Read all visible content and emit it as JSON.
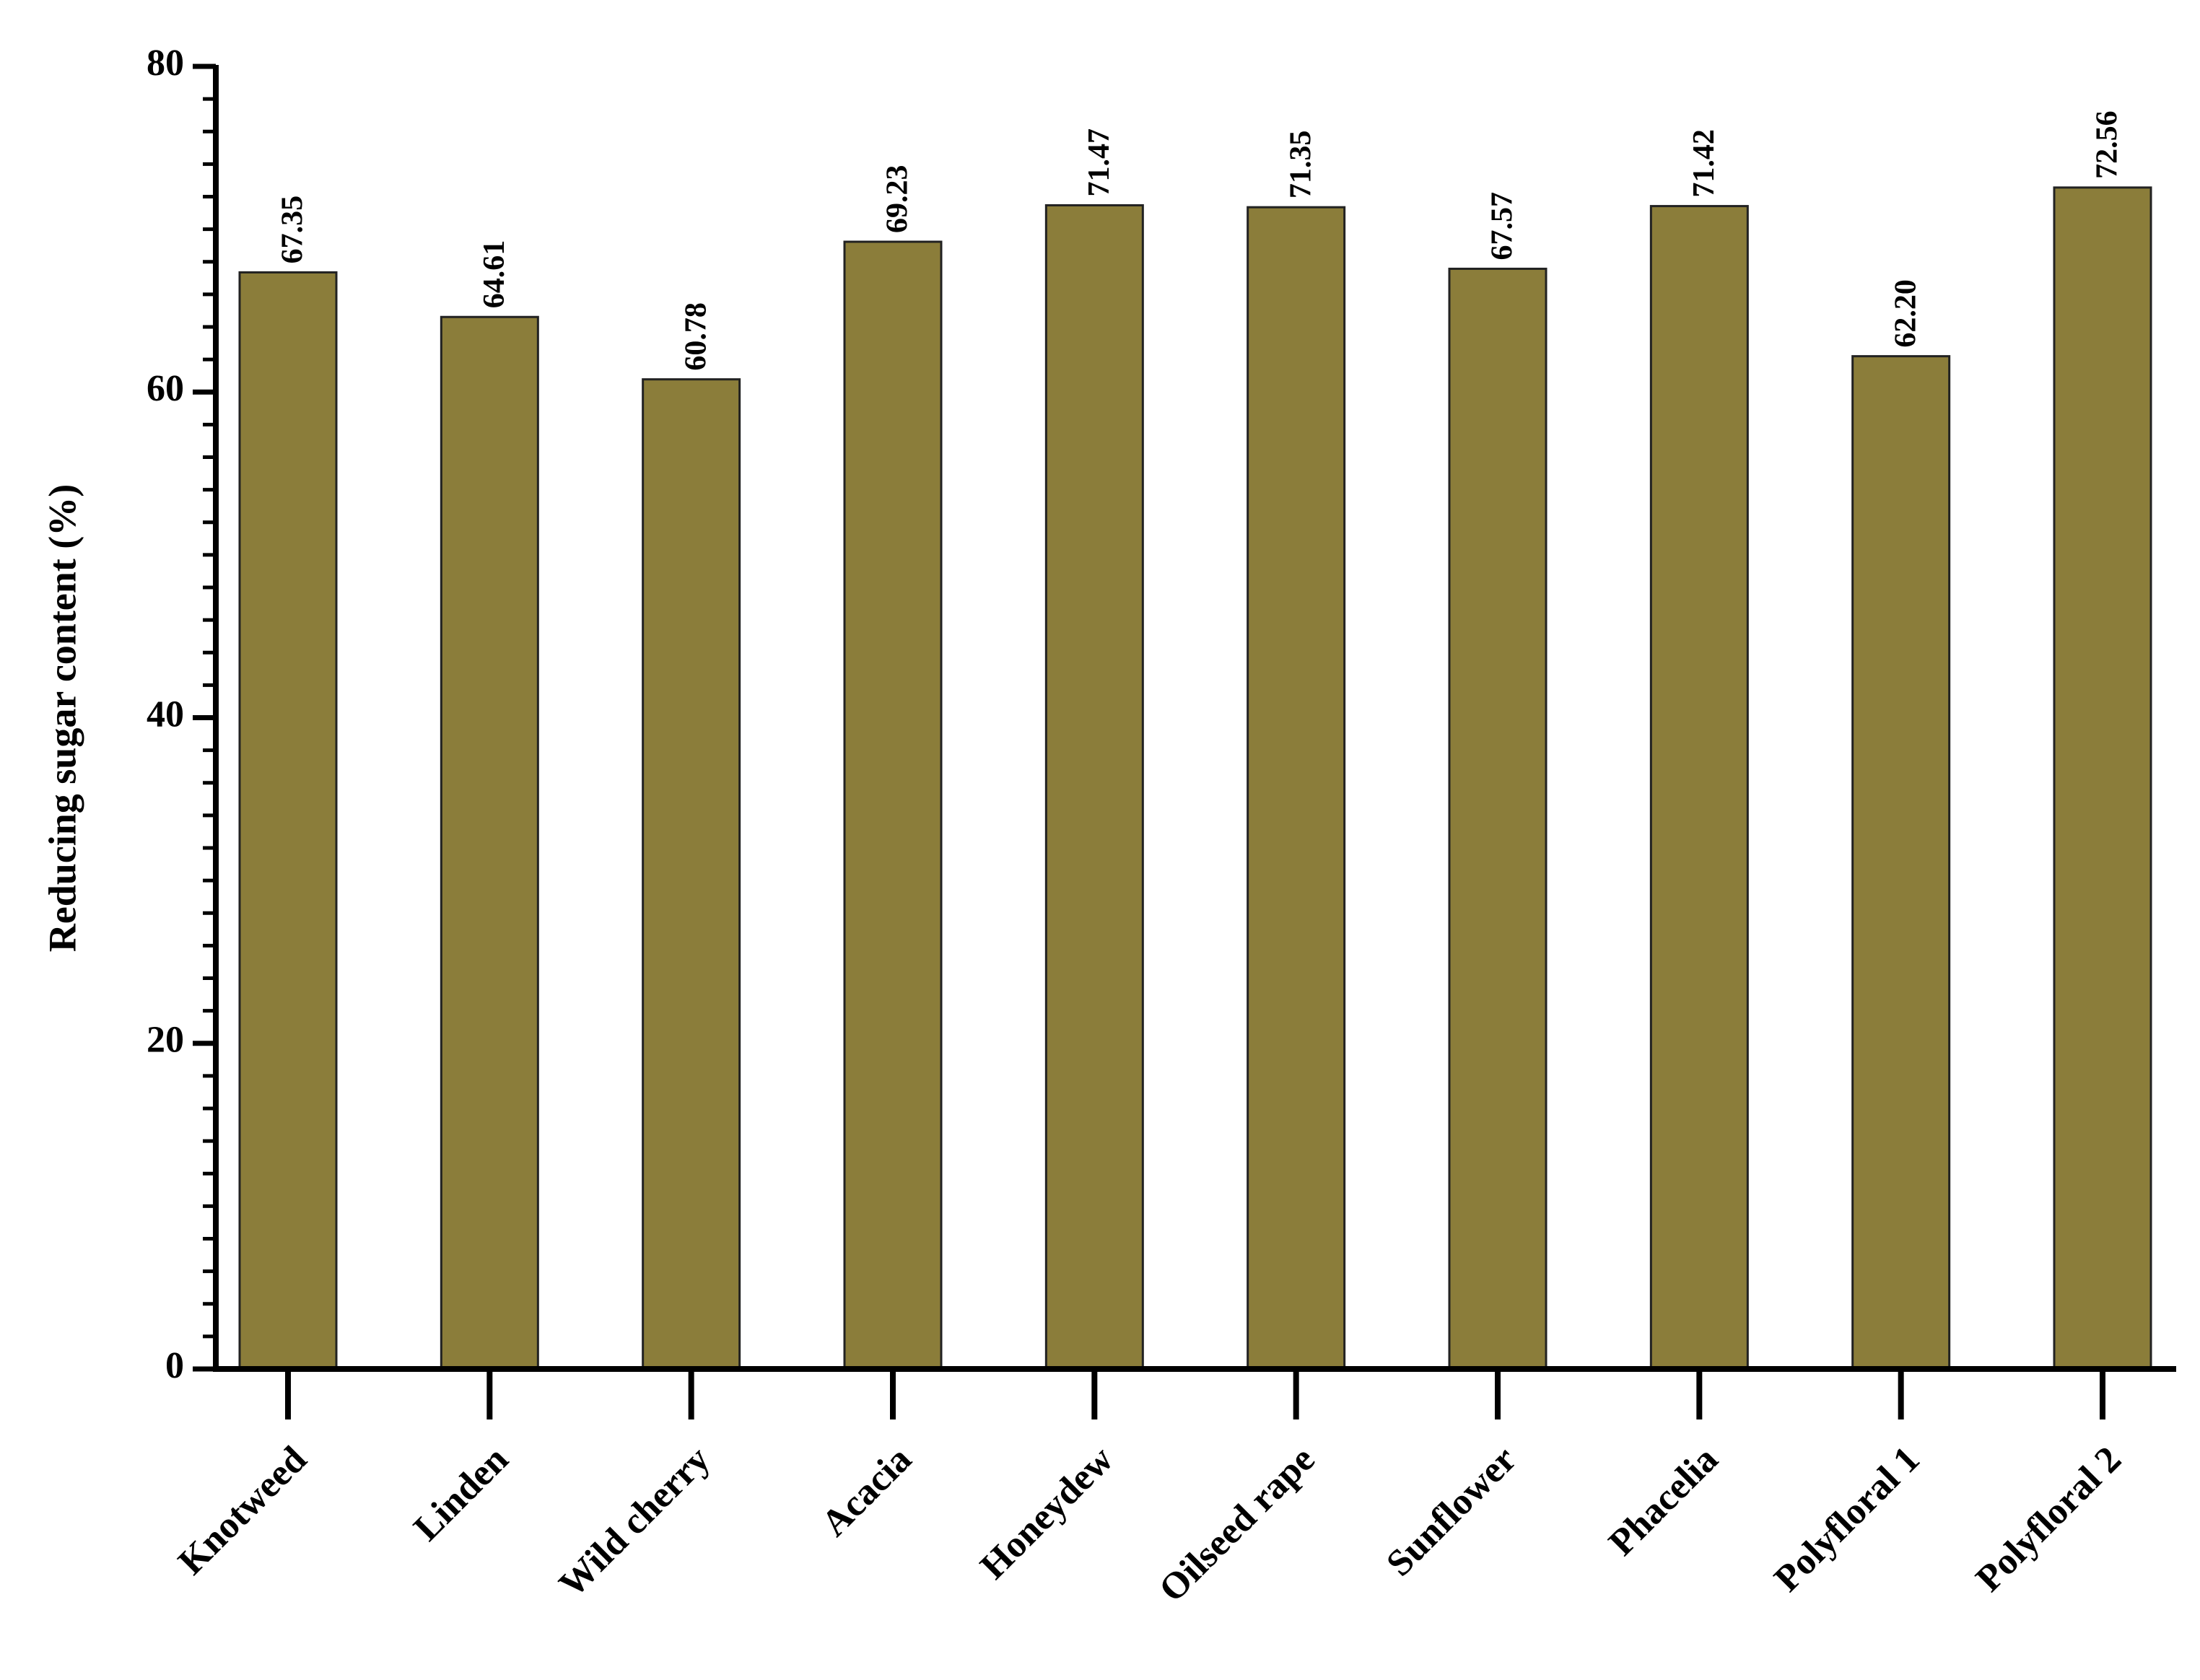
{
  "chart_data": {
    "type": "bar",
    "y_label": "Reducing sugar content (%)",
    "categories": [
      "Knotweed",
      "Linden",
      "Wild cherry",
      "Acacia",
      "Honeydew",
      "Oilseed rape",
      "Sunflower",
      "Phacelia",
      "Polyfloral 1",
      "Polyfloral 2"
    ],
    "values": [
      67.35,
      64.61,
      60.78,
      69.23,
      71.47,
      71.35,
      67.57,
      71.42,
      62.2,
      72.56
    ],
    "value_labels": [
      "67.35",
      "64.61",
      "60.78",
      "69.23",
      "71.47",
      "71.35",
      "67.57",
      "71.42",
      "62.20",
      "72.56"
    ],
    "color": "#8b7d3a",
    "ylim": [
      0,
      80
    ],
    "yticks": [
      0,
      20,
      40,
      60,
      80
    ],
    "grid": false
  }
}
